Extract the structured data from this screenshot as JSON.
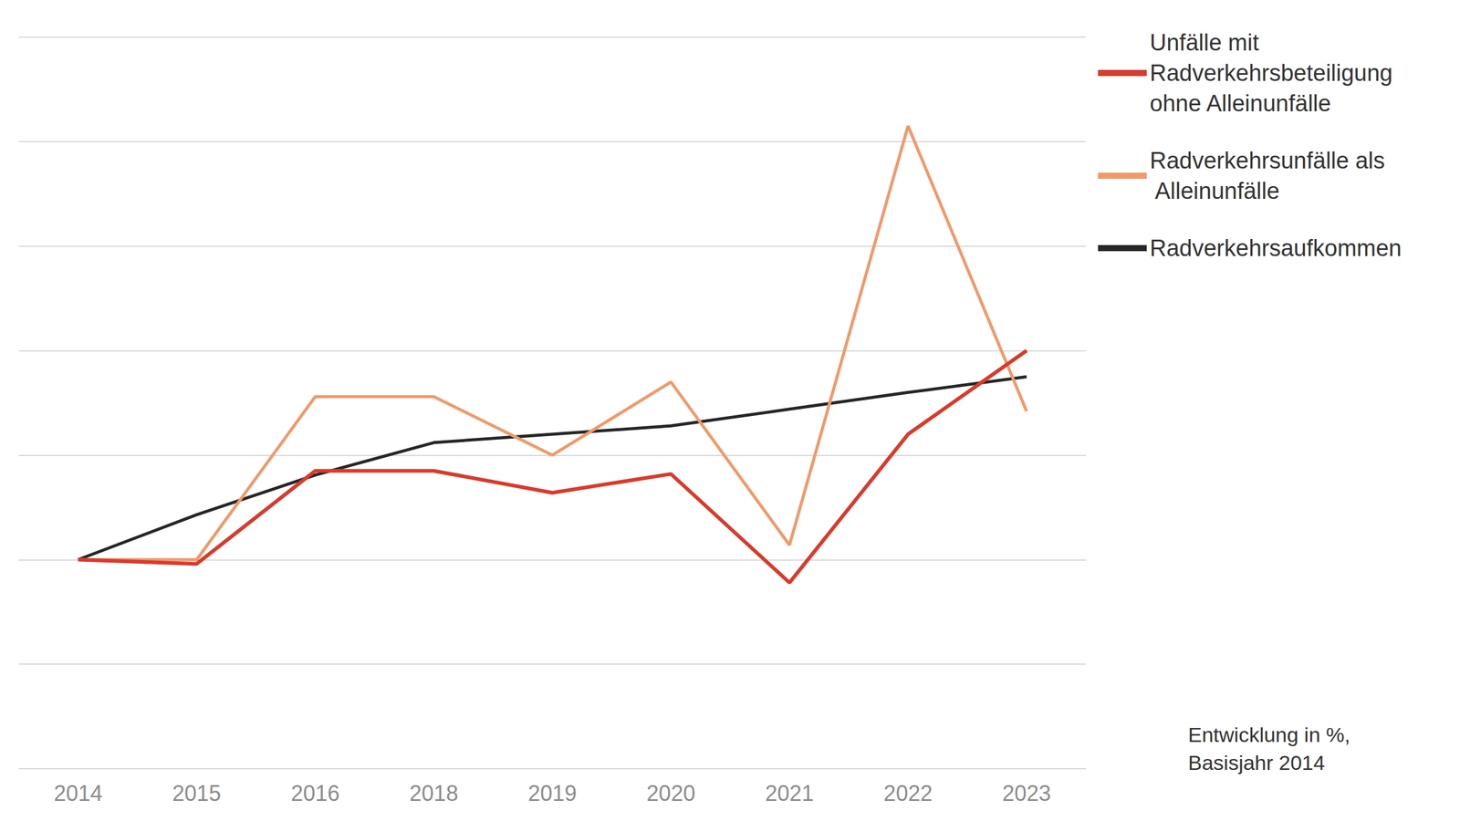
{
  "chart_data": {
    "type": "line",
    "annotation": "Entwicklung in %, Basisjahr 2014",
    "categories": [
      "2014",
      "2015",
      "2016",
      "2018",
      "2019",
      "2020",
      "2021",
      "2022",
      "2023"
    ],
    "series": [
      {
        "name": "Unfälle mit Radverkehrsbeteiligung ohne Alleinunfälle",
        "color": "#d93a2b",
        "values": [
          0,
          -0.4,
          8.5,
          8.5,
          6.4,
          8.2,
          -2.2,
          12.0,
          20.0
        ]
      },
      {
        "name": "Radverkehrsunfälle als Alleinunfälle",
        "color": "#f0996a",
        "values": [
          0,
          0,
          15.6,
          15.6,
          10.0,
          17.0,
          1.4,
          41.5,
          14.2
        ]
      },
      {
        "name": "Radverkehrsaufkommen",
        "color": "#262626",
        "values": [
          0,
          4.3,
          8.1,
          11.2,
          12.0,
          12.8,
          14.4,
          16.0,
          17.5
        ]
      }
    ],
    "ylim": [
      -20,
      50
    ],
    "yticks": [
      -20,
      -10,
      0,
      10,
      20,
      30,
      40,
      50
    ],
    "grid": true,
    "legend": "right",
    "tick_labels": "x"
  }
}
